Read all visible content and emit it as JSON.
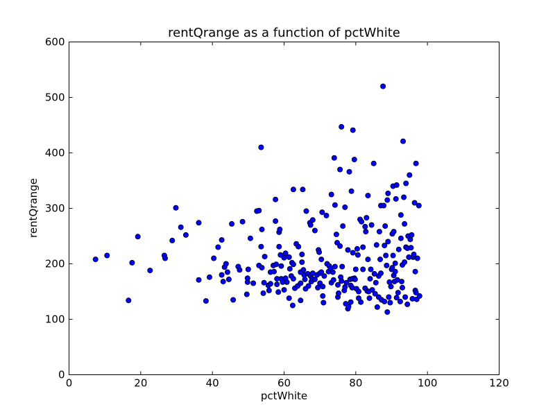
{
  "chart_data": {
    "type": "scatter",
    "title": "rentQrange as a function of pctWhite",
    "xlabel": "pctWhite",
    "ylabel": "rentQrange",
    "xlim": [
      0,
      120
    ],
    "ylim": [
      0,
      600
    ],
    "xticks": [
      0,
      20,
      40,
      60,
      80,
      100,
      120
    ],
    "yticks": [
      0,
      100,
      200,
      300,
      400,
      500,
      600
    ],
    "xtick_labels": [
      "0",
      "20",
      "40",
      "60",
      "80",
      "100",
      "120"
    ],
    "ytick_labels": [
      "0",
      "100",
      "200",
      "300",
      "400",
      "500",
      "600"
    ],
    "grid": false,
    "marker_color": "#0000ff",
    "marker_edge_color": "#000000",
    "points": [
      [
        7.4,
        208
      ],
      [
        10.6,
        215
      ],
      [
        16.6,
        134
      ],
      [
        17.6,
        202
      ],
      [
        19.2,
        249
      ],
      [
        22.6,
        188
      ],
      [
        26.6,
        215
      ],
      [
        26.8,
        210
      ],
      [
        28.8,
        242
      ],
      [
        29.8,
        301
      ],
      [
        31.2,
        266
      ],
      [
        32.6,
        252
      ],
      [
        36.2,
        274
      ],
      [
        36.2,
        171
      ],
      [
        38.2,
        133
      ],
      [
        39.2,
        176
      ],
      [
        40.4,
        210
      ],
      [
        41.6,
        230
      ],
      [
        42.6,
        243
      ],
      [
        42.6,
        180
      ],
      [
        43.0,
        168
      ],
      [
        43.4,
        194
      ],
      [
        43.8,
        200
      ],
      [
        44.2,
        185
      ],
      [
        44.6,
        172
      ],
      [
        45.4,
        272
      ],
      [
        45.8,
        135
      ],
      [
        47.2,
        195
      ],
      [
        47.6,
        189
      ],
      [
        48.4,
        276
      ],
      [
        49.6,
        145
      ],
      [
        49.8,
        167
      ],
      [
        49.8,
        174
      ],
      [
        50.0,
        190
      ],
      [
        50.6,
        246
      ],
      [
        51.4,
        165
      ],
      [
        52.4,
        295
      ],
      [
        53.0,
        296
      ],
      [
        53.0,
        197
      ],
      [
        53.6,
        231
      ],
      [
        53.6,
        410
      ],
      [
        53.8,
        193
      ],
      [
        53.8,
        262
      ],
      [
        54.2,
        147
      ],
      [
        54.4,
        166
      ],
      [
        54.6,
        213
      ],
      [
        55.6,
        161
      ],
      [
        55.8,
        152
      ],
      [
        56.2,
        185
      ],
      [
        56.2,
        164
      ],
      [
        57.0,
        197
      ],
      [
        57.2,
        186
      ],
      [
        57.6,
        316
      ],
      [
        57.6,
        277
      ],
      [
        57.8,
        199
      ],
      [
        58.0,
        173
      ],
      [
        58.0,
        163
      ],
      [
        58.4,
        149
      ],
      [
        58.6,
        231
      ],
      [
        58.6,
        257
      ],
      [
        58.8,
        262
      ],
      [
        59.0,
        216
      ],
      [
        59.2,
        196
      ],
      [
        59.2,
        173
      ],
      [
        59.6,
        167
      ],
      [
        60.0,
        153
      ],
      [
        60.0,
        211
      ],
      [
        60.4,
        219
      ],
      [
        60.4,
        174
      ],
      [
        60.8,
        167
      ],
      [
        61.4,
        138
      ],
      [
        61.4,
        212
      ],
      [
        61.6,
        191
      ],
      [
        62.0,
        178
      ],
      [
        62.2,
        202
      ],
      [
        62.4,
        125
      ],
      [
        62.6,
        173
      ],
      [
        62.6,
        334
      ],
      [
        62.6,
        199
      ],
      [
        63.0,
        156
      ],
      [
        63.4,
        236
      ],
      [
        63.8,
        160
      ],
      [
        64.0,
        231
      ],
      [
        64.6,
        185
      ],
      [
        64.6,
        165
      ],
      [
        64.6,
        134
      ],
      [
        65.0,
        217
      ],
      [
        65.0,
        203
      ],
      [
        65.2,
        334
      ],
      [
        65.4,
        189
      ],
      [
        65.6,
        180
      ],
      [
        65.8,
        172
      ],
      [
        66.0,
        155
      ],
      [
        66.2,
        295
      ],
      [
        66.6,
        182
      ],
      [
        66.8,
        160
      ],
      [
        67.2,
        274
      ],
      [
        67.4,
        270
      ],
      [
        67.4,
        178
      ],
      [
        67.6,
        168
      ],
      [
        67.8,
        173
      ],
      [
        68.0,
        279
      ],
      [
        68.0,
        183
      ],
      [
        68.6,
        260
      ],
      [
        68.6,
        172
      ],
      [
        69.2,
        180
      ],
      [
        69.4,
        157
      ],
      [
        69.6,
        225
      ],
      [
        69.8,
        221
      ],
      [
        70.0,
        165
      ],
      [
        70.0,
        183
      ],
      [
        70.4,
        208
      ],
      [
        70.4,
        185
      ],
      [
        70.6,
        293
      ],
      [
        70.8,
        159
      ],
      [
        70.8,
        142
      ],
      [
        71.0,
        130
      ],
      [
        71.2,
        178
      ],
      [
        71.8,
        287
      ],
      [
        72.0,
        200
      ],
      [
        72.4,
        186
      ],
      [
        72.6,
        196
      ],
      [
        73.0,
        192
      ],
      [
        73.2,
        166
      ],
      [
        73.2,
        325
      ],
      [
        73.6,
        185
      ],
      [
        73.8,
        171
      ],
      [
        74.0,
        391
      ],
      [
        74.2,
        306
      ],
      [
        74.2,
        195
      ],
      [
        74.6,
        253
      ],
      [
        74.8,
        238
      ],
      [
        75.0,
        140
      ],
      [
        75.0,
        162
      ],
      [
        75.2,
        147
      ],
      [
        75.6,
        232
      ],
      [
        75.6,
        370
      ],
      [
        75.8,
        176
      ],
      [
        76.0,
        169
      ],
      [
        76.0,
        447
      ],
      [
        76.2,
        195
      ],
      [
        76.4,
        268
      ],
      [
        76.8,
        152
      ],
      [
        77.0,
        158
      ],
      [
        77.0,
        302
      ],
      [
        77.2,
        128
      ],
      [
        77.4,
        166
      ],
      [
        77.8,
        225
      ],
      [
        77.8,
        119
      ],
      [
        78.0,
        123
      ],
      [
        78.2,
        366
      ],
      [
        78.4,
        172
      ],
      [
        78.6,
        131
      ],
      [
        78.6,
        161
      ],
      [
        78.8,
        331
      ],
      [
        79.0,
        157
      ],
      [
        79.0,
        173
      ],
      [
        79.2,
        220
      ],
      [
        79.2,
        441
      ],
      [
        79.6,
        388
      ],
      [
        79.6,
        174
      ],
      [
        79.8,
        172
      ],
      [
        80.0,
        190
      ],
      [
        80.2,
        155
      ],
      [
        80.4,
        227
      ],
      [
        80.6,
        216
      ],
      [
        80.8,
        150
      ],
      [
        80.8,
        138
      ],
      [
        81.2,
        280
      ],
      [
        81.4,
        131
      ],
      [
        81.6,
        276
      ],
      [
        82.0,
        230
      ],
      [
        82.0,
        190
      ],
      [
        82.6,
        156
      ],
      [
        82.6,
        267
      ],
      [
        82.8,
        258
      ],
      [
        83.0,
        283
      ],
      [
        83.2,
        151
      ],
      [
        83.4,
        323
      ],
      [
        83.4,
        208
      ],
      [
        83.6,
        150
      ],
      [
        83.8,
        138
      ],
      [
        84.0,
        173
      ],
      [
        84.2,
        190
      ],
      [
        84.4,
        270
      ],
      [
        84.6,
        153
      ],
      [
        85.0,
        381
      ],
      [
        85.2,
        182
      ],
      [
        85.4,
        146
      ],
      [
        85.6,
        166
      ],
      [
        85.8,
        234
      ],
      [
        86.0,
        122
      ],
      [
        86.4,
        140
      ],
      [
        86.4,
        178
      ],
      [
        86.6,
        258
      ],
      [
        86.8,
        208
      ],
      [
        87.0,
        305
      ],
      [
        87.0,
        183
      ],
      [
        87.2,
        135
      ],
      [
        87.6,
        520
      ],
      [
        87.8,
        305
      ],
      [
        88.0,
        132
      ],
      [
        88.0,
        233
      ],
      [
        88.2,
        268
      ],
      [
        88.4,
        215
      ],
      [
        88.6,
        197
      ],
      [
        88.8,
        113
      ],
      [
        88.8,
        315
      ],
      [
        89.0,
        327
      ],
      [
        89.0,
        240
      ],
      [
        89.2,
        140
      ],
      [
        89.4,
        167
      ],
      [
        89.6,
        130
      ],
      [
        89.8,
        159
      ],
      [
        90.0,
        190
      ],
      [
        90.2,
        193
      ],
      [
        90.2,
        254
      ],
      [
        90.4,
        340
      ],
      [
        90.4,
        215
      ],
      [
        90.6,
        179
      ],
      [
        90.6,
        258
      ],
      [
        90.8,
        168
      ],
      [
        91.0,
        186
      ],
      [
        91.0,
        201
      ],
      [
        91.2,
        317
      ],
      [
        91.4,
        342
      ],
      [
        91.4,
        139
      ],
      [
        91.6,
        171
      ],
      [
        91.8,
        148
      ],
      [
        92.0,
        226
      ],
      [
        92.4,
        132
      ],
      [
        92.6,
        246
      ],
      [
        92.6,
        288
      ],
      [
        92.8,
        168
      ],
      [
        93.0,
        157
      ],
      [
        93.0,
        198
      ],
      [
        93.2,
        421
      ],
      [
        93.4,
        320
      ],
      [
        93.6,
        272
      ],
      [
        93.6,
        203
      ],
      [
        93.8,
        140
      ],
      [
        94.0,
        345
      ],
      [
        94.0,
        230
      ],
      [
        94.4,
        127
      ],
      [
        94.4,
        228
      ],
      [
        94.6,
        250
      ],
      [
        94.8,
        212
      ],
      [
        95.0,
        360
      ],
      [
        95.2,
        244
      ],
      [
        95.4,
        229
      ],
      [
        95.6,
        252
      ],
      [
        95.8,
        137
      ],
      [
        96.0,
        212
      ],
      [
        96.2,
        217
      ],
      [
        96.4,
        310
      ],
      [
        96.6,
        186
      ],
      [
        96.6,
        152
      ],
      [
        96.8,
        148
      ],
      [
        96.8,
        381
      ],
      [
        97.0,
        136
      ],
      [
        97.2,
        210
      ],
      [
        97.6,
        305
      ],
      [
        97.8,
        142
      ]
    ]
  }
}
